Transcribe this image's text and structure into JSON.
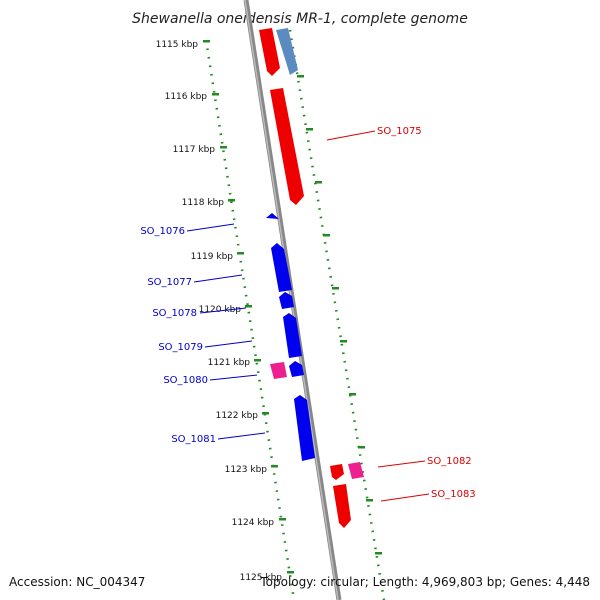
{
  "title": "Shewanella oneidensis MR-1, complete genome",
  "footer": {
    "accession": "Accession: NC_004347",
    "stats": "Topology: circular; Length: 4,969,803 bp; Genes: 4,448"
  },
  "colors": {
    "backbone": "#808080",
    "tick": "#228B22",
    "forward": "#ee0000",
    "reverse": "#0000ee",
    "pink": "#ee1f8f",
    "steel": "#5b8bc0",
    "label_forward": "#dd0000",
    "label_reverse": "#0000cc"
  },
  "kbp_labels": [
    "1115 kbp",
    "1116 kbp",
    "1117 kbp",
    "1118 kbp",
    "1119 kbp",
    "1120 kbp",
    "1121 kbp",
    "1122 kbp",
    "1123 kbp",
    "1124 kbp",
    "1125 kbp"
  ],
  "gene_labels": [
    {
      "name": "SO_1075",
      "strand": "forward"
    },
    {
      "name": "SO_1076",
      "strand": "reverse"
    },
    {
      "name": "SO_1077",
      "strand": "reverse"
    },
    {
      "name": "SO_1078",
      "strand": "reverse"
    },
    {
      "name": "SO_1079",
      "strand": "reverse"
    },
    {
      "name": "SO_1080",
      "strand": "reverse"
    },
    {
      "name": "SO_1081",
      "strand": "reverse"
    },
    {
      "name": "SO_1082",
      "strand": "forward"
    },
    {
      "name": "SO_1083",
      "strand": "forward"
    }
  ]
}
